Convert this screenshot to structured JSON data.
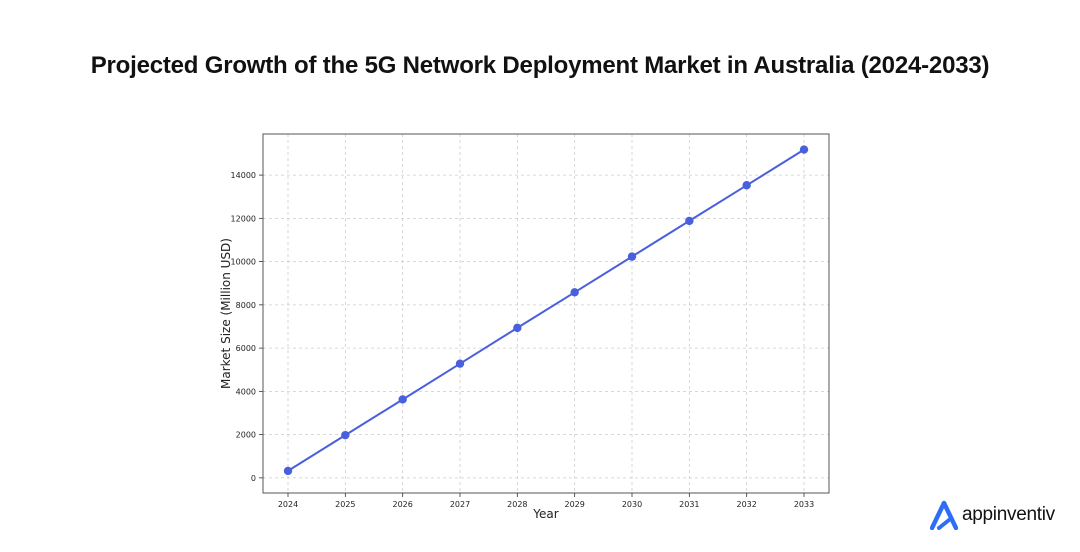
{
  "chart_data": {
    "type": "line",
    "title": "Projected Growth of the 5G Network Deployment Market in Australia (2024-2033)",
    "xlabel": "Year",
    "ylabel": "Market Size (Million USD)",
    "x": [
      "2024",
      "2025",
      "2026",
      "2027",
      "2028",
      "2029",
      "2030",
      "2031",
      "2032",
      "2033"
    ],
    "series": [
      {
        "values": [
          320,
          1975,
          3625,
          5280,
          6935,
          8580,
          10230,
          11880,
          13530,
          15180
        ]
      }
    ],
    "yticks": [
      0,
      2000,
      4000,
      6000,
      8000,
      10000,
      12000,
      14000
    ],
    "ylim": [
      -700,
      15900
    ],
    "grid": true,
    "color": "#4a5fdc"
  },
  "logo": {
    "text": "appinventiv",
    "icon": "appinventiv-logo-icon",
    "color": "#2f6df6"
  }
}
